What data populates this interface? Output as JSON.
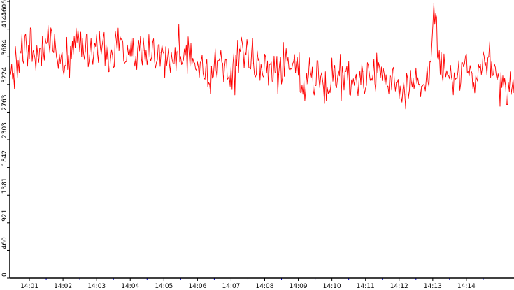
{
  "chart_data": {
    "type": "line",
    "title": "",
    "xlabel": "",
    "ylabel": "",
    "grid": false,
    "legend": "none",
    "line_color": "#ff0000",
    "axis_color": "#000000",
    "minor_tick_color": "#0000cc",
    "ylim": [
      0,
      4606
    ],
    "y_ticks": [
      {
        "value": 0,
        "label": "0"
      },
      {
        "value": 460,
        "label": "460"
      },
      {
        "value": 921,
        "label": "921"
      },
      {
        "value": 1381,
        "label": "1381"
      },
      {
        "value": 1842,
        "label": "1842"
      },
      {
        "value": 2303,
        "label": "2303"
      },
      {
        "value": 2763,
        "label": "2763"
      },
      {
        "value": 3224,
        "label": "3224"
      },
      {
        "value": 3684,
        "label": "3684"
      },
      {
        "value": 4145,
        "label": "4145"
      },
      {
        "value": 4606,
        "label": "4606"
      }
    ],
    "x_ticks": [
      {
        "time": "14:01",
        "label": "14:01"
      },
      {
        "time": "14:02",
        "label": "14:02"
      },
      {
        "time": "14:03",
        "label": "14:03"
      },
      {
        "time": "14:04",
        "label": "14:04"
      },
      {
        "time": "14:05",
        "label": "14:05"
      },
      {
        "time": "14:06",
        "label": "14:06"
      },
      {
        "time": "14:07",
        "label": "14:07"
      },
      {
        "time": "14:08",
        "label": "14:08"
      },
      {
        "time": "14:09",
        "label": "14:09"
      },
      {
        "time": "14:10",
        "label": "14:10"
      },
      {
        "time": "14:11",
        "label": "14:11"
      },
      {
        "time": "14:12",
        "label": "14:12"
      },
      {
        "time": "14:13",
        "label": "14:13"
      },
      {
        "time": "14:14",
        "label": "14:14"
      }
    ],
    "xlim": [
      "14:00:25",
      "14:15:25"
    ],
    "series": [
      {
        "name": "",
        "color": "#ff0000",
        "x": [
          "14:00:25",
          "14:00:40",
          "14:00:55",
          "14:01:10",
          "14:01:25",
          "14:01:40",
          "14:01:55",
          "14:02:10",
          "14:02:25",
          "14:02:40",
          "14:02:55",
          "14:03:10",
          "14:03:25",
          "14:03:40",
          "14:03:55",
          "14:04:10",
          "14:04:25",
          "14:04:40",
          "14:04:55",
          "14:05:10",
          "14:05:25",
          "14:05:40",
          "14:05:55",
          "14:06:10",
          "14:06:25",
          "14:06:40",
          "14:06:55",
          "14:07:10",
          "14:07:25",
          "14:07:40",
          "14:07:55",
          "14:08:10",
          "14:08:25",
          "14:08:40",
          "14:08:55",
          "14:09:10",
          "14:09:25",
          "14:09:40",
          "14:09:55",
          "14:10:10",
          "14:10:25",
          "14:10:40",
          "14:10:55",
          "14:11:10",
          "14:11:25",
          "14:11:40",
          "14:11:55",
          "14:12:10",
          "14:12:25",
          "14:12:40",
          "14:12:55",
          "14:13:02",
          "14:13:10",
          "14:13:25",
          "14:13:40",
          "14:13:55",
          "14:14:10",
          "14:14:25",
          "14:14:40",
          "14:14:55",
          "14:15:10",
          "14:15:25"
        ],
        "values": [
          3470,
          3620,
          3830,
          3650,
          3760,
          4090,
          3570,
          3700,
          3930,
          3780,
          3760,
          3880,
          3670,
          3790,
          3880,
          3690,
          3790,
          3930,
          3750,
          3560,
          3760,
          3880,
          3580,
          3410,
          3520,
          3660,
          3330,
          3540,
          3760,
          3580,
          3470,
          3560,
          3390,
          3580,
          3420,
          3280,
          3510,
          3350,
          3140,
          3330,
          3440,
          3210,
          3440,
          3330,
          3520,
          3190,
          3250,
          3060,
          3330,
          3190,
          3610,
          4566,
          3640,
          3450,
          3300,
          3520,
          3410,
          3560,
          3690,
          3300,
          3190,
          3090
        ]
      }
    ]
  }
}
